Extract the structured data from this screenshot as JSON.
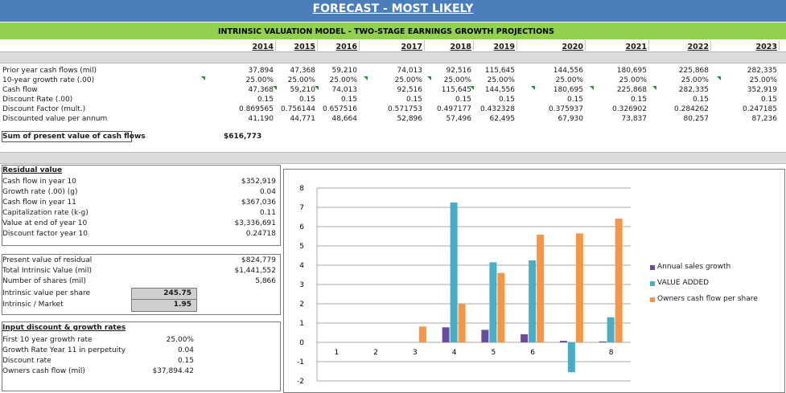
{
  "header": {
    "title": "FORECAST - MOST LIKELY",
    "subtitle": "INTRINSIC  VALUATION  MODEL - TWO-STAGE EARNINGS  GROWTH PROJECTIONS"
  },
  "years": [
    "2014",
    "2015",
    "2016",
    "2017",
    "2018",
    "2019",
    "2020",
    "2021",
    "2022",
    "2023"
  ],
  "projection": {
    "rows": [
      {
        "label": "Prior year cash flows (mil)",
        "values": [
          "37,894",
          "47,368",
          "59,210",
          "74,013",
          "92,516",
          "115,645",
          "144,556",
          "180,695",
          "225,868",
          "282,335"
        ]
      },
      {
        "label": "10-year growth rate (.00)",
        "values": [
          "25.00%",
          "25.00%",
          "25.00%",
          "25.00%",
          "25.00%",
          "25.00%",
          "25.00%",
          "25.00%",
          "25.00%",
          "25.00%"
        ]
      },
      {
        "label": "Cash flow",
        "values": [
          "47,368",
          "59,210",
          "74,013",
          "92,516",
          "115,645",
          "144,556",
          "180,695",
          "225,868",
          "282,335",
          "352,919"
        ]
      },
      {
        "label": "Discount Rate (.00)",
        "values": [
          "0.15",
          "0.15",
          "0.15",
          "0.15",
          "0.15",
          "0.15",
          "0.15",
          "0.15",
          "0.15",
          "0.15"
        ]
      },
      {
        "label": "Discount Factor (mult.)",
        "values": [
          "0.869565",
          "0.756144",
          "0.657516",
          "0.571753",
          "0.497177",
          "0.432328",
          "0.375937",
          "0.326902",
          "0.284262",
          "0.247185"
        ]
      },
      {
        "label": "Discounted value per annum",
        "values": [
          "41,190",
          "44,771",
          "48,664",
          "52,896",
          "57,496",
          "62,495",
          "67,930",
          "73,837",
          "80,257",
          "87,236"
        ]
      }
    ],
    "sum_label": "Sum of present value of cash flows",
    "sum_value": "$616,773"
  },
  "residual": {
    "title": "Residual value",
    "rows": [
      {
        "label": "Cash flow in year 10",
        "value": "$352,919"
      },
      {
        "label": "Growth rate (.00) (g)",
        "value": "0.04"
      },
      {
        "label": "Cash flow in year 11",
        "value": "$367,036"
      },
      {
        "label": "Capitalization rate (k-g)",
        "value": "0.11"
      },
      {
        "label": "Value at end of year 10",
        "value": "$3,336,691"
      },
      {
        "label": "Discount factor year 10",
        "value": "0.24718"
      }
    ]
  },
  "valuation": {
    "pv_residual_label": "Present value of residual",
    "pv_residual": "$824,779",
    "total_label": "Total Intrinsic Value (mil)",
    "total": "$1,441,552",
    "shares_label": "Number of shares (mil)",
    "shares": "5,866",
    "per_share_label": "Intrinsic value per share",
    "per_share": "245.75",
    "ratio_label": "Intrinsic / Market",
    "ratio": "1.95"
  },
  "inputs": {
    "title": "Input discount & growth rates",
    "rows": [
      {
        "label": "First 10 year growth rate",
        "value": "25.00%"
      },
      {
        "label": "Growth Rate Year 11 in perpetuity",
        "value": "0.04"
      },
      {
        "label": "Discount rate",
        "value": "0.15"
      },
      {
        "label": "Owners cash flow (mil)",
        "value": "$37,894.42"
      }
    ]
  },
  "chart_data": {
    "type": "bar",
    "categories": [
      "1",
      "2",
      "3",
      "4",
      "5",
      "6",
      "7",
      "8"
    ],
    "ylim": [
      -2,
      8
    ],
    "yticks": [
      "-2",
      "-1",
      "0",
      "1",
      "2",
      "3",
      "4",
      "5",
      "6",
      "7",
      "8"
    ],
    "grid": true,
    "legend_placement": "right",
    "series": [
      {
        "name": "Annual sales growth",
        "color": "#6a4c9c",
        "values": [
          0,
          0,
          0,
          0.78,
          0.65,
          0.42,
          0.08,
          0.05
        ]
      },
      {
        "name": "VALUE ADDED",
        "color": "#4bacc6",
        "values": [
          0,
          0,
          0,
          7.25,
          4.15,
          4.25,
          -1.55,
          1.3
        ]
      },
      {
        "name": "Owners cash flow per share",
        "color": "#f79646",
        "values": [
          0,
          0,
          0.82,
          1.98,
          3.6,
          5.58,
          5.65,
          6.42
        ]
      }
    ]
  }
}
